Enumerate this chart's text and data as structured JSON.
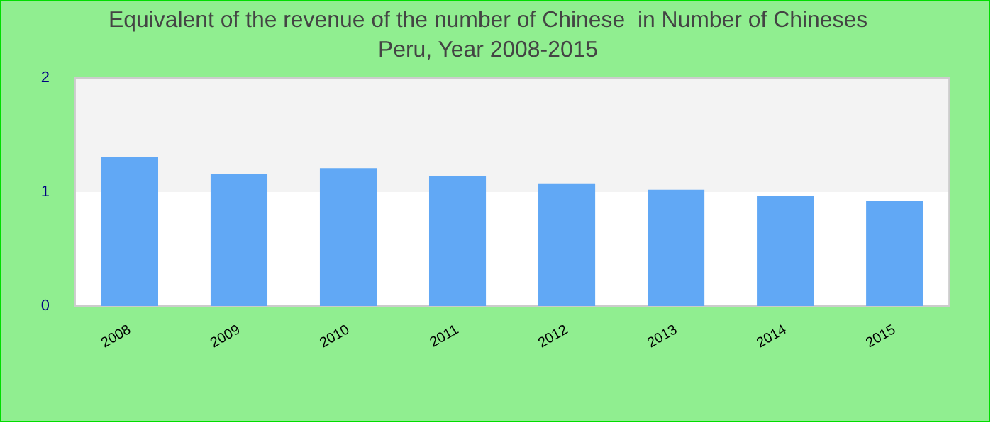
{
  "chart_data": {
    "type": "bar",
    "title": "Equivalent of the revenue of the number of Chinese  in Number of Chineses",
    "subtitle": "Peru, Year 2008-2015",
    "categories": [
      "2008",
      "2009",
      "2010",
      "2011",
      "2012",
      "2013",
      "2014",
      "2015"
    ],
    "values": [
      1.31,
      1.16,
      1.21,
      1.14,
      1.07,
      1.02,
      0.97,
      0.92
    ],
    "color": "#61a8f5",
    "ylim": [
      0,
      2
    ],
    "yticks": [
      0,
      1,
      2
    ],
    "legend": false,
    "bands": [
      {
        "axis": "y",
        "from": 1,
        "to": 2,
        "color": "#f3f3f3"
      }
    ]
  }
}
